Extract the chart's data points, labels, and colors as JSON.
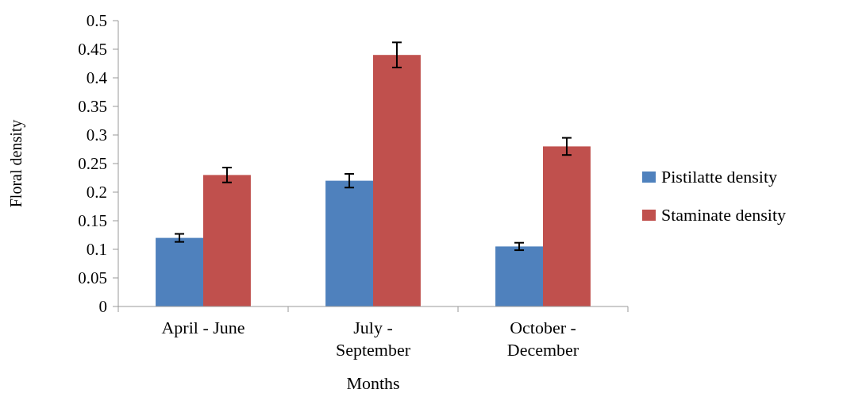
{
  "chart_data": {
    "type": "bar",
    "xlabel": "Months",
    "ylabel": "Floral density",
    "categories": [
      "April - June",
      "July - September",
      "October - December"
    ],
    "series": [
      {
        "name": "Pistilatte density",
        "color": "#4f81bd",
        "values": [
          0.12,
          0.22,
          0.105
        ],
        "errors": [
          0.007,
          0.012,
          0.0065
        ]
      },
      {
        "name": "Staminate density",
        "color": "#c0504d",
        "values": [
          0.23,
          0.44,
          0.28
        ],
        "errors": [
          0.013,
          0.022,
          0.015
        ]
      }
    ],
    "ylim": [
      0,
      0.5
    ],
    "yticks": [
      0,
      0.05,
      0.1,
      0.15,
      0.2,
      0.25,
      0.3,
      0.35,
      0.4,
      0.45,
      0.5
    ],
    "grid": false,
    "legend": "right"
  }
}
